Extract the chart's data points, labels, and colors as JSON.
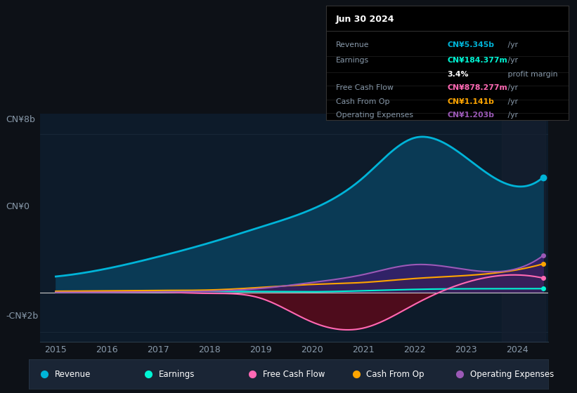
{
  "bg_color": "#0d1117",
  "chart_bg": "#0d1b2a",
  "years": [
    2015,
    2016,
    2017,
    2018,
    2019,
    2020,
    2021,
    2022,
    2023,
    2024
  ],
  "revenue": [
    800000000.0,
    1200000000.0,
    1800000000.0,
    2500000000.0,
    3300000000.0,
    4200000000.0,
    5800000000.0,
    7800000000.0,
    6800000000.0,
    5345000000.0
  ],
  "earnings": [
    40000000.0,
    50000000.0,
    60000000.0,
    50000000.0,
    40000000.0,
    30000000.0,
    80000000.0,
    150000000.0,
    180000000.0,
    184377000.0
  ],
  "free_cash_flow": [
    20000000.0,
    30000000.0,
    20000000.0,
    -50000000.0,
    -300000000.0,
    -1500000000.0,
    -1800000000.0,
    -600000000.0,
    500000000.0,
    878277000.0
  ],
  "cash_from_op": [
    60000000.0,
    80000000.0,
    100000000.0,
    120000000.0,
    250000000.0,
    400000000.0,
    500000000.0,
    700000000.0,
    850000000.0,
    1141000000.0
  ],
  "operating_expenses": [
    0.0,
    0.0,
    20000000.0,
    60000000.0,
    200000000.0,
    500000000.0,
    900000000.0,
    1400000000.0,
    1150000000.0,
    1203000000.0
  ],
  "revenue_color": "#00b4d8",
  "earnings_color": "#00f5d4",
  "fcf_color": "#ff69b4",
  "cfop_color": "#ffa500",
  "opex_color": "#9b59b6",
  "revenue_fill": "#0a3a55",
  "fcf_fill_neg": "#5a0a1a",
  "fcf_fill_pos": "#1a4a3a",
  "opex_fill": "#3d1a6e",
  "cfop_fill": "#3a2800",
  "grid_color": "#1e2d3d",
  "zero_line_color": "#cccccc",
  "shade_color": "#162030",
  "info_bg": "#000000",
  "info_border": "#333333",
  "info_revenue_color": "#00b4d8",
  "info_earnings_color": "#00f5d4",
  "info_fcf_color": "#ff69b4",
  "info_cfop_color": "#ffa500",
  "info_opex_color": "#9b59b6",
  "legend_bg": "#1a2535"
}
